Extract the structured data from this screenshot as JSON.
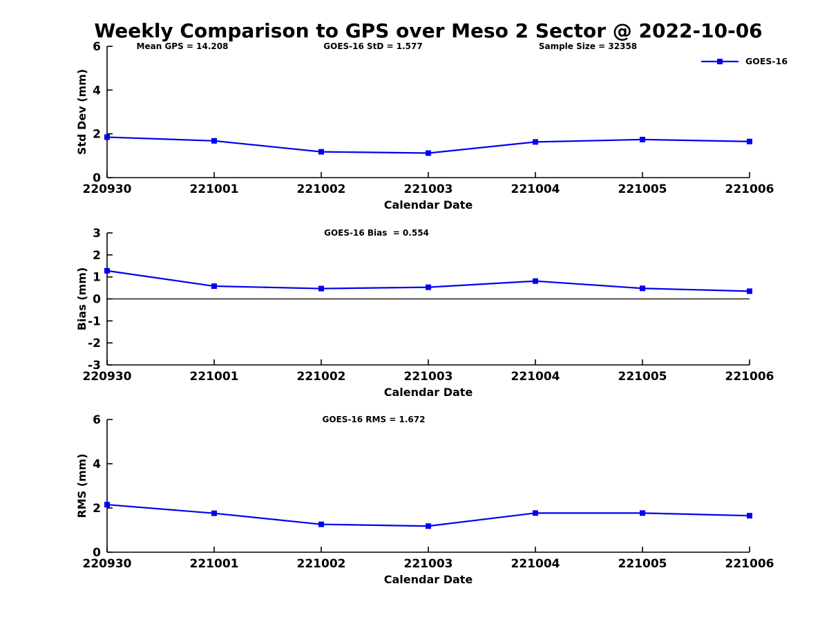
{
  "page": {
    "title": "Weekly Comparison to GPS over Meso 2 Sector @ 2022-10-06",
    "background_color": "#ffffff",
    "text_color": "#000000"
  },
  "legend": {
    "label": "GOES-16",
    "line_color": "#0000ee",
    "marker": "filled-square"
  },
  "chart_data": [
    {
      "type": "line",
      "id": "std-dev",
      "annotations": [
        "Mean GPS = 14.208",
        "GOES-16 StD = 1.577",
        "Sample Size = 32358"
      ],
      "categories": [
        "220930",
        "221001",
        "221002",
        "221003",
        "221004",
        "221005",
        "221006"
      ],
      "series": [
        {
          "name": "GOES-16",
          "color": "#0000ee",
          "marker": "square",
          "values": [
            1.85,
            1.68,
            1.18,
            1.12,
            1.63,
            1.74,
            1.65
          ]
        }
      ],
      "xlabel": "Calendar Date",
      "ylabel": "Std Dev (mm)",
      "ylim": [
        0,
        6
      ],
      "yticks": [
        0,
        2,
        4,
        6
      ],
      "zero_line": false,
      "grid": false,
      "legend_position": "top-right-outside"
    },
    {
      "type": "line",
      "id": "bias",
      "annotations": [
        "GOES-16 Bias  = 0.554"
      ],
      "categories": [
        "220930",
        "221001",
        "221002",
        "221003",
        "221004",
        "221005",
        "221006"
      ],
      "series": [
        {
          "name": "GOES-16",
          "color": "#0000ee",
          "marker": "square",
          "values": [
            1.28,
            0.58,
            0.47,
            0.53,
            0.81,
            0.48,
            0.35
          ]
        }
      ],
      "xlabel": "Calendar Date",
      "ylabel": "Bias (mm)",
      "ylim": [
        -3,
        3
      ],
      "yticks": [
        -3,
        -2,
        -1,
        0,
        1,
        2,
        3
      ],
      "zero_line": true,
      "grid": false,
      "legend_position": "none"
    },
    {
      "type": "line",
      "id": "rms",
      "annotations": [
        "GOES-16 RMS = 1.672"
      ],
      "categories": [
        "220930",
        "221001",
        "221002",
        "221003",
        "221004",
        "221005",
        "221006"
      ],
      "series": [
        {
          "name": "GOES-16",
          "color": "#0000ee",
          "marker": "square",
          "values": [
            2.15,
            1.76,
            1.26,
            1.18,
            1.77,
            1.77,
            1.65
          ]
        }
      ],
      "xlabel": "Calendar Date",
      "ylabel": "RMS (mm)",
      "ylim": [
        0,
        6
      ],
      "yticks": [
        0,
        2,
        4,
        6
      ],
      "zero_line": false,
      "grid": false,
      "legend_position": "none"
    }
  ]
}
